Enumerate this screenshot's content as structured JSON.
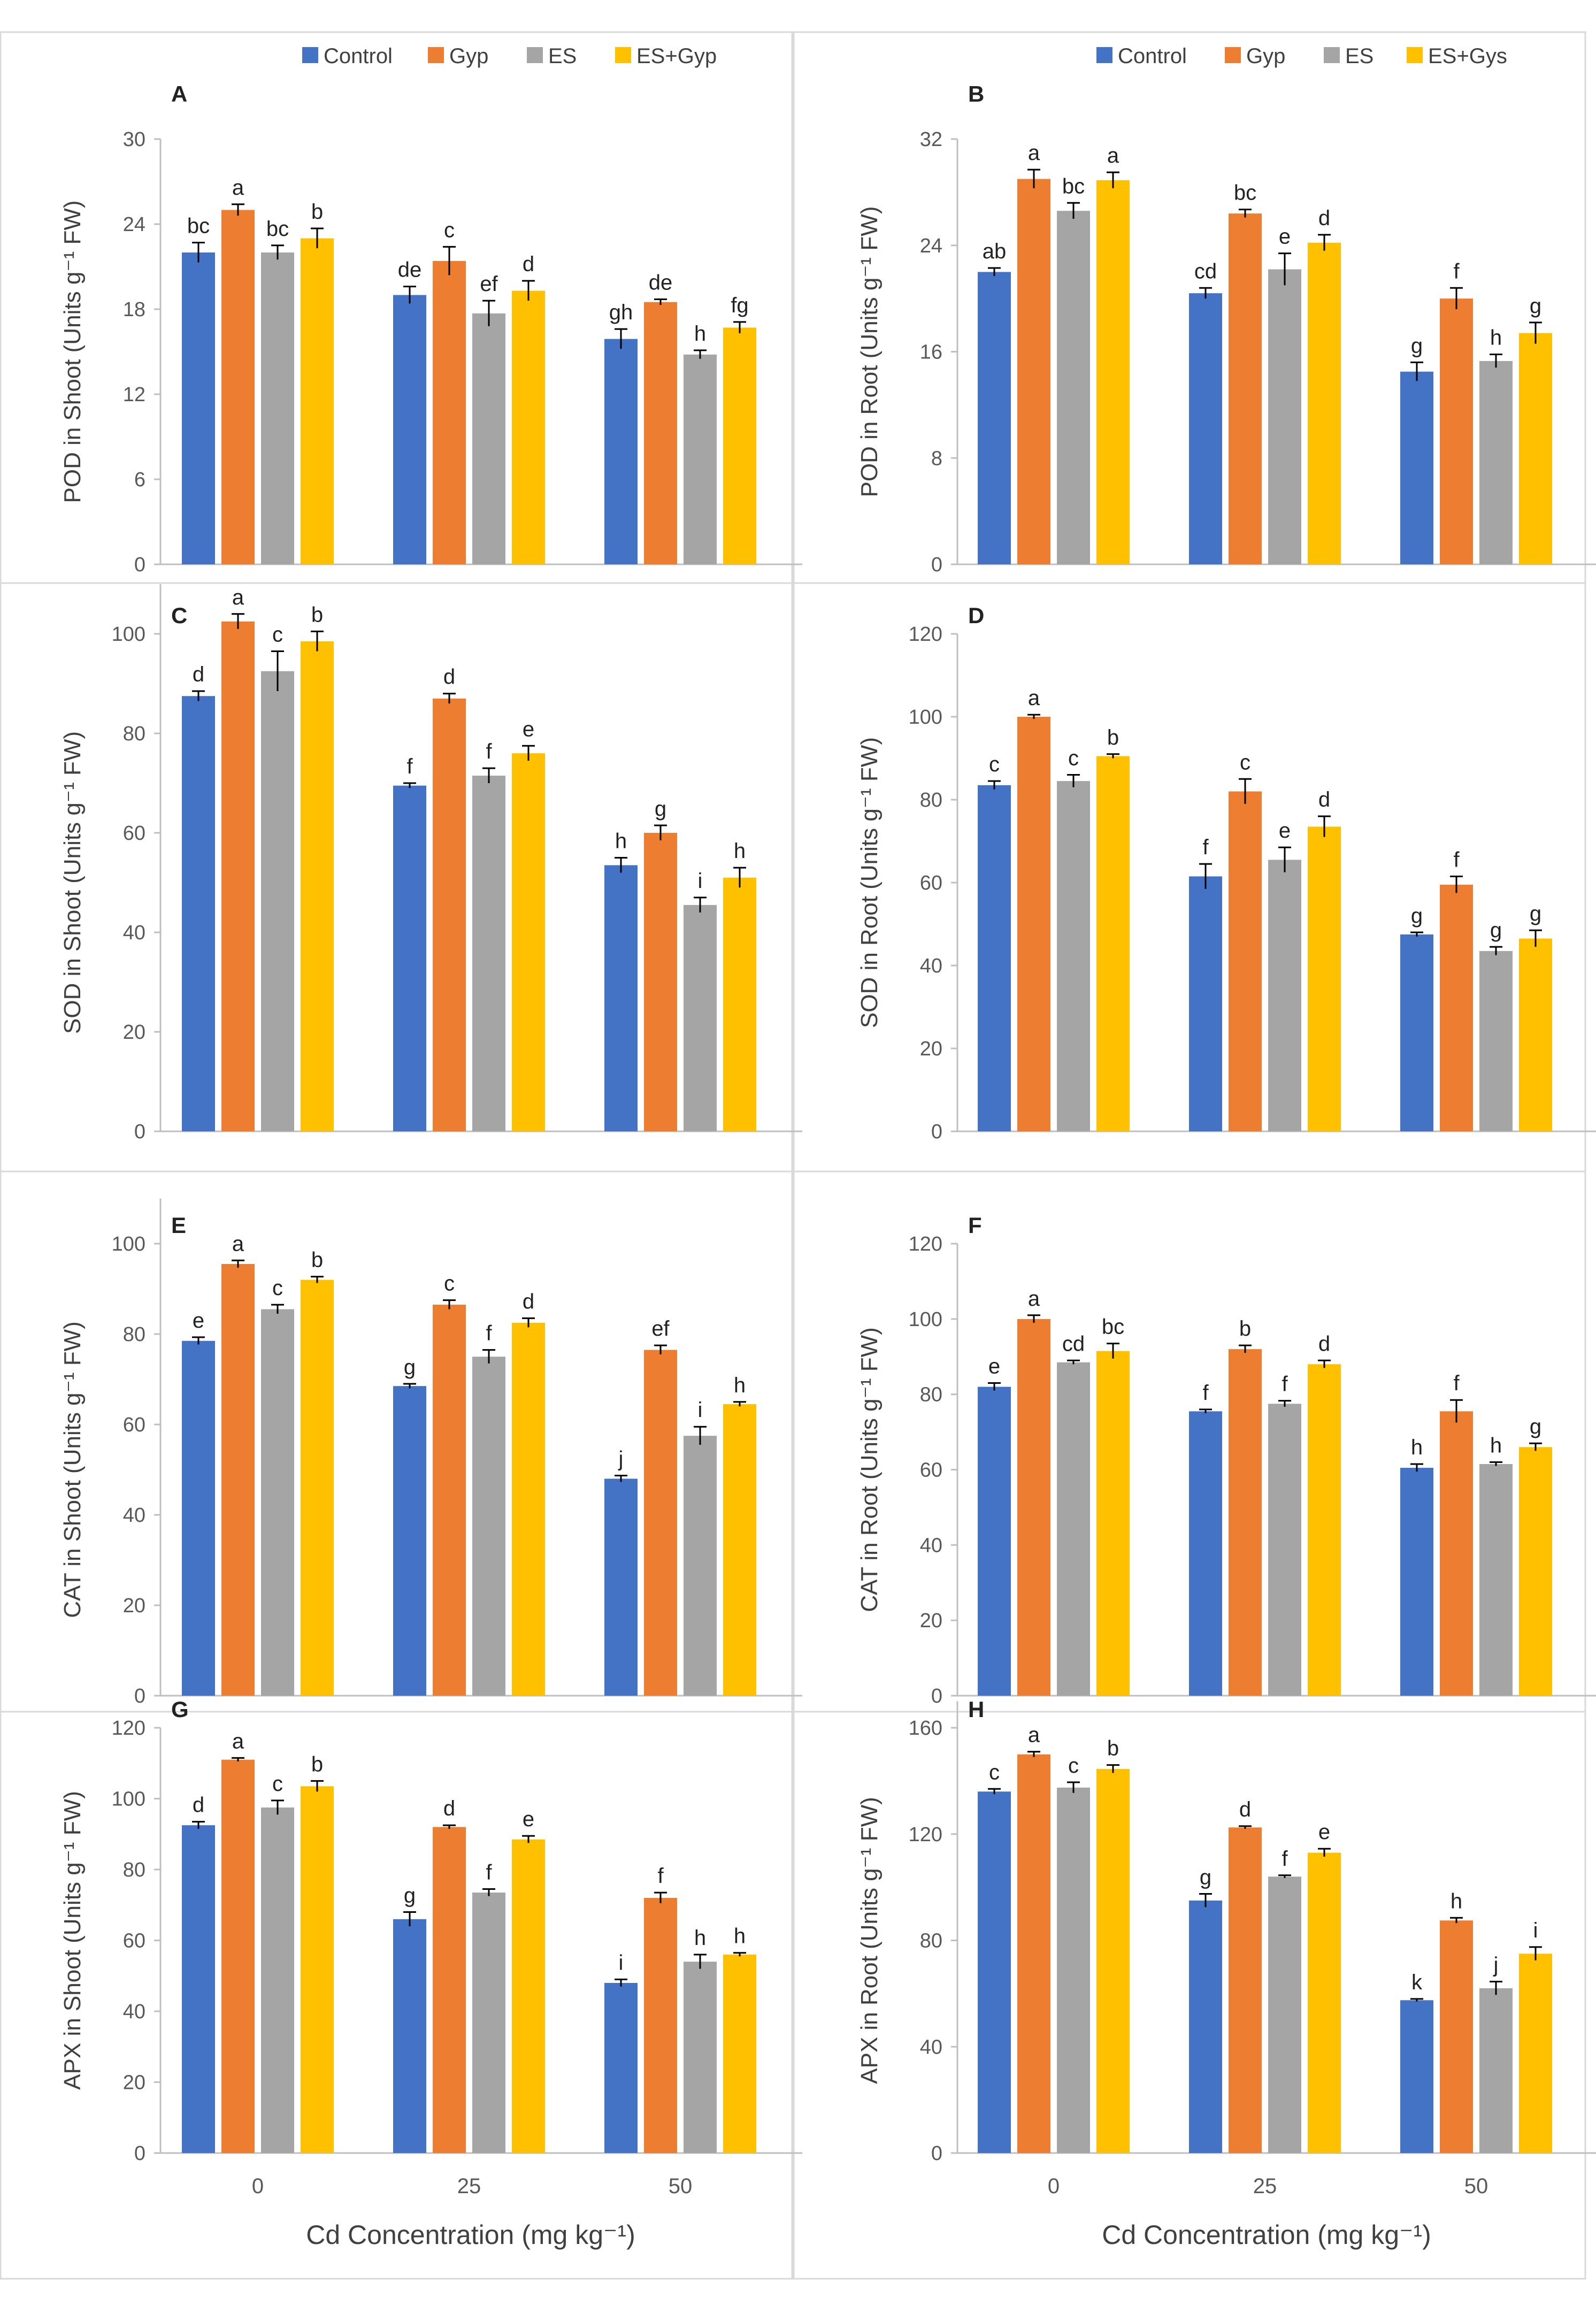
{
  "colors": {
    "Control": "#4472C4",
    "Gyp": "#ED7D31",
    "ES": "#A5A5A5",
    "ES+Gyp": "#FFC000",
    "ES+Gys": "#FFC000",
    "axis": "#BFBFBF",
    "errorbar": "#000000"
  },
  "x_axis": {
    "title": "Cd Concentration (mg kg⁻¹)",
    "categories": [
      "0",
      "25",
      "50"
    ]
  },
  "chart_data": [
    {
      "panel": "A",
      "type": "bar",
      "categories": [
        "0",
        "25",
        "50"
      ],
      "legend": [
        "Control",
        "Gyp",
        "ES",
        "ES+Gyp"
      ],
      "ylabel": "POD in Shoot (Units g⁻¹ FW)",
      "ylim": [
        0,
        30
      ],
      "yticks": [
        0,
        6,
        12,
        18,
        24,
        30
      ],
      "series": [
        {
          "name": "Control",
          "values": [
            22.0,
            19.0,
            15.9
          ],
          "errors": [
            0.7,
            0.6,
            0.7
          ],
          "letters": [
            "bc",
            "de",
            "gh"
          ]
        },
        {
          "name": "Gyp",
          "values": [
            25.0,
            21.4,
            18.5
          ],
          "errors": [
            0.4,
            1.0,
            0.2
          ],
          "letters": [
            "a",
            "c",
            "de"
          ]
        },
        {
          "name": "ES",
          "values": [
            22.0,
            17.7,
            14.8
          ],
          "errors": [
            0.5,
            0.9,
            0.3
          ],
          "letters": [
            "bc",
            "ef",
            "h"
          ]
        },
        {
          "name": "ES+Gyp",
          "values": [
            23.0,
            19.3,
            16.7
          ],
          "errors": [
            0.7,
            0.7,
            0.4
          ],
          "letters": [
            "b",
            "d",
            "fg"
          ]
        }
      ]
    },
    {
      "panel": "B",
      "type": "bar",
      "categories": [
        "0",
        "25",
        "50"
      ],
      "legend": [
        "Control",
        "Gyp",
        "ES",
        "ES+Gys"
      ],
      "ylabel": "POD in Root (Units g⁻¹ FW)",
      "ylim": [
        0,
        32
      ],
      "yticks": [
        0,
        8,
        16,
        24,
        32
      ],
      "series": [
        {
          "name": "Control",
          "values": [
            22.0,
            20.4,
            14.5
          ],
          "errors": [
            0.3,
            0.4,
            0.7
          ],
          "letters": [
            "ab",
            "cd",
            "g"
          ]
        },
        {
          "name": "Gyp",
          "values": [
            29.0,
            26.4,
            20.0
          ],
          "errors": [
            0.7,
            0.3,
            0.8
          ],
          "letters": [
            "a",
            "bc",
            "f"
          ]
        },
        {
          "name": "ES",
          "values": [
            26.6,
            22.2,
            15.3
          ],
          "errors": [
            0.6,
            1.2,
            0.5
          ],
          "letters": [
            "bc",
            "e",
            "h"
          ]
        },
        {
          "name": "ES+Gys",
          "values": [
            28.9,
            24.2,
            17.4
          ],
          "errors": [
            0.6,
            0.6,
            0.8
          ],
          "letters": [
            "a",
            "d",
            "g"
          ]
        }
      ]
    },
    {
      "panel": "C",
      "type": "bar",
      "categories": [
        "0",
        "25",
        "50"
      ],
      "ylabel": "SOD in Shoot (Units g⁻¹ FW)",
      "ylim": [
        0,
        110
      ],
      "yticks": [
        0,
        20,
        40,
        60,
        80,
        100
      ],
      "series": [
        {
          "name": "Control",
          "values": [
            87.5,
            69.5,
            53.5
          ],
          "errors": [
            1.0,
            0.5,
            1.5
          ],
          "letters": [
            "d",
            "f",
            "h"
          ]
        },
        {
          "name": "Gyp",
          "values": [
            102.5,
            87.0,
            60.0
          ],
          "errors": [
            1.5,
            1.0,
            1.5
          ],
          "letters": [
            "a",
            "d",
            "g"
          ]
        },
        {
          "name": "ES",
          "values": [
            92.5,
            71.5,
            45.5
          ],
          "errors": [
            4.0,
            1.5,
            1.5
          ],
          "letters": [
            "c",
            "f",
            "i"
          ]
        },
        {
          "name": "ES+Gyp",
          "values": [
            98.5,
            76.0,
            51.0
          ],
          "errors": [
            2.0,
            1.5,
            2.0
          ],
          "letters": [
            "b",
            "e",
            "h"
          ]
        }
      ]
    },
    {
      "panel": "D",
      "type": "bar",
      "categories": [
        "0",
        "25",
        "50"
      ],
      "ylabel": "SOD in Root (Units g⁻¹ FW)",
      "ylim": [
        0,
        120
      ],
      "yticks": [
        0,
        20,
        40,
        60,
        80,
        100,
        120
      ],
      "series": [
        {
          "name": "Control",
          "values": [
            83.5,
            61.5,
            47.5
          ],
          "errors": [
            1.0,
            3.0,
            0.5
          ],
          "letters": [
            "c",
            "f",
            "g"
          ]
        },
        {
          "name": "Gyp",
          "values": [
            100.0,
            82.0,
            59.5
          ],
          "errors": [
            0.5,
            3.0,
            2.0
          ],
          "letters": [
            "a",
            "c",
            "f"
          ]
        },
        {
          "name": "ES",
          "values": [
            84.5,
            65.5,
            43.5
          ],
          "errors": [
            1.5,
            3.0,
            1.0
          ],
          "letters": [
            "c",
            "e",
            "g"
          ]
        },
        {
          "name": "ES+Gyp",
          "values": [
            90.5,
            73.5,
            46.5
          ],
          "errors": [
            0.5,
            2.5,
            2.0
          ],
          "letters": [
            "b",
            "d",
            "g"
          ]
        }
      ]
    },
    {
      "panel": "E",
      "type": "bar",
      "categories": [
        "0",
        "25",
        "50"
      ],
      "ylabel": "CAT in Shoot (Units g⁻¹ FW)",
      "ylim": [
        0,
        110
      ],
      "yticks": [
        0,
        20,
        40,
        60,
        80,
        100
      ],
      "series": [
        {
          "name": "Control",
          "values": [
            78.5,
            68.5,
            48.0
          ],
          "errors": [
            0.8,
            0.5,
            0.7
          ],
          "letters": [
            "e",
            "g",
            "j"
          ]
        },
        {
          "name": "Gyp",
          "values": [
            95.5,
            86.5,
            76.5
          ],
          "errors": [
            0.8,
            1.0,
            1.0
          ],
          "letters": [
            "a",
            "c",
            "ef"
          ]
        },
        {
          "name": "ES",
          "values": [
            85.5,
            75.0,
            57.5
          ],
          "errors": [
            1.0,
            1.5,
            2.0
          ],
          "letters": [
            "c",
            "f",
            "i"
          ]
        },
        {
          "name": "ES+Gyp",
          "values": [
            92.0,
            82.5,
            64.5
          ],
          "errors": [
            0.7,
            1.0,
            0.5
          ],
          "letters": [
            "b",
            "d",
            "h"
          ]
        }
      ]
    },
    {
      "panel": "F",
      "type": "bar",
      "categories": [
        "0",
        "25",
        "50"
      ],
      "ylabel": "CAT in Root (Units g⁻¹ FW)",
      "ylim": [
        0,
        120
      ],
      "yticks": [
        0,
        20,
        40,
        60,
        80,
        100,
        120
      ],
      "series": [
        {
          "name": "Control",
          "values": [
            82.0,
            75.5,
            60.5
          ],
          "errors": [
            1.0,
            0.5,
            1.0
          ],
          "letters": [
            "e",
            "f",
            "h"
          ]
        },
        {
          "name": "Gyp",
          "values": [
            100.0,
            92.0,
            75.5
          ],
          "errors": [
            1.0,
            1.0,
            3.0
          ],
          "letters": [
            "a",
            "b",
            "f"
          ]
        },
        {
          "name": "ES",
          "values": [
            88.5,
            77.5,
            61.5
          ],
          "errors": [
            0.5,
            0.8,
            0.5
          ],
          "letters": [
            "cd",
            "f",
            "h"
          ]
        },
        {
          "name": "ES+Gyp",
          "values": [
            91.5,
            88.0,
            66.0
          ],
          "errors": [
            2.0,
            1.0,
            1.0
          ],
          "letters": [
            "bc",
            "d",
            "g"
          ]
        }
      ]
    },
    {
      "panel": "G",
      "type": "bar",
      "categories": [
        "0",
        "25",
        "50"
      ],
      "ylabel": "APX in Shoot (Units g⁻¹ FW)",
      "ylim": [
        0,
        120
      ],
      "yticks": [
        0,
        20,
        40,
        60,
        80,
        100,
        120
      ],
      "series": [
        {
          "name": "Control",
          "values": [
            92.5,
            66.0,
            48.0
          ],
          "errors": [
            1.0,
            2.0,
            1.0
          ],
          "letters": [
            "d",
            "g",
            "i"
          ]
        },
        {
          "name": "Gyp",
          "values": [
            111.0,
            92.0,
            72.0
          ],
          "errors": [
            0.5,
            0.5,
            1.5
          ],
          "letters": [
            "a",
            "d",
            "f"
          ]
        },
        {
          "name": "ES",
          "values": [
            97.5,
            73.5,
            54.0
          ],
          "errors": [
            2.0,
            1.0,
            2.0
          ],
          "letters": [
            "c",
            "f",
            "h"
          ]
        },
        {
          "name": "ES+Gyp",
          "values": [
            103.5,
            88.5,
            56.0
          ],
          "errors": [
            1.5,
            1.0,
            0.5
          ],
          "letters": [
            "b",
            "e",
            "h"
          ]
        }
      ]
    },
    {
      "panel": "H",
      "type": "bar",
      "categories": [
        "0",
        "25",
        "50"
      ],
      "ylabel": "APX in Root (Units g⁻¹ FW)",
      "ylim": [
        0,
        170
      ],
      "yticks": [
        0,
        40,
        80,
        120,
        160
      ],
      "series": [
        {
          "name": "Control",
          "values": [
            136.0,
            95.0,
            57.5
          ],
          "errors": [
            1.0,
            2.5,
            0.5
          ],
          "letters": [
            "c",
            "g",
            "k"
          ]
        },
        {
          "name": "Gyp",
          "values": [
            150.0,
            122.5,
            87.5
          ],
          "errors": [
            1.0,
            0.5,
            1.0
          ],
          "letters": [
            "a",
            "d",
            "h"
          ]
        },
        {
          "name": "ES",
          "values": [
            137.5,
            104.0,
            62.0
          ],
          "errors": [
            2.0,
            0.5,
            2.5
          ],
          "letters": [
            "c",
            "f",
            "j"
          ]
        },
        {
          "name": "ES+Gyp",
          "values": [
            144.5,
            113.0,
            75.0
          ],
          "errors": [
            1.5,
            1.5,
            2.5
          ],
          "letters": [
            "b",
            "e",
            "i"
          ]
        }
      ]
    }
  ]
}
